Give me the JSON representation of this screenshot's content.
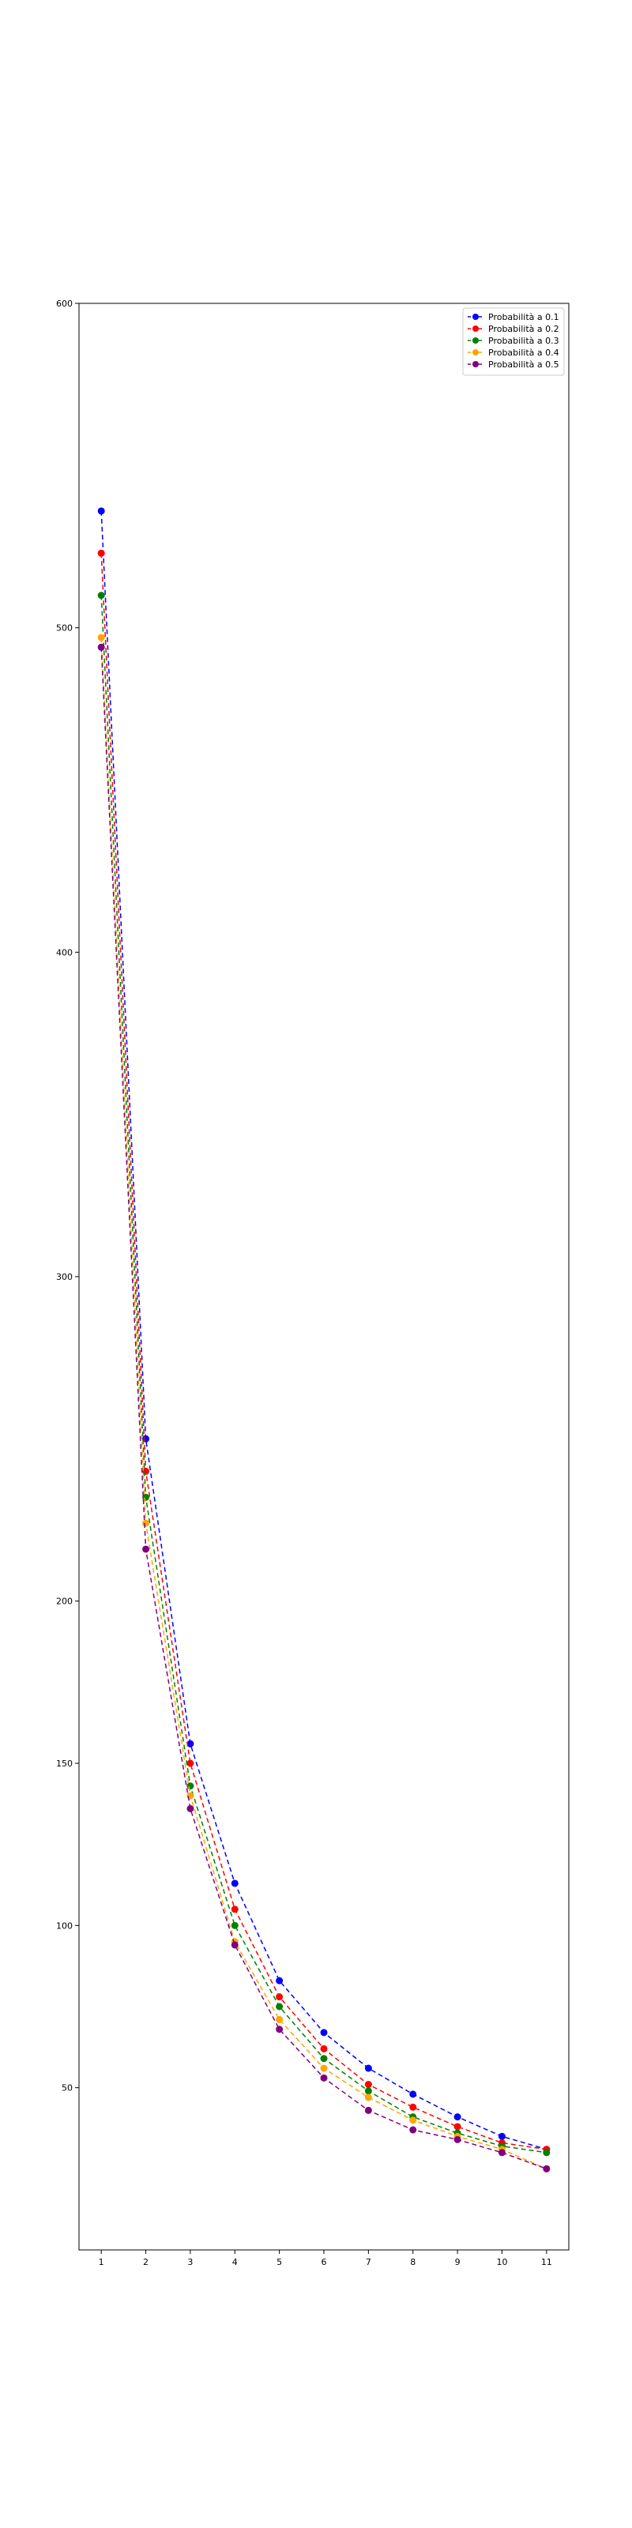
{
  "chart_data": {
    "type": "line",
    "title": "",
    "xlabel": "",
    "ylabel": "",
    "x": [
      1,
      2,
      3,
      4,
      5,
      6,
      7,
      8,
      9,
      10,
      11
    ],
    "xlim": [
      0.5,
      11.5
    ],
    "ylim": [
      0,
      600
    ],
    "y_ticks": [
      50,
      100,
      150,
      200,
      300,
      400,
      500,
      600
    ],
    "grid": false,
    "legend_position": "top-right",
    "series": [
      {
        "name": "Probabilità a 0.1",
        "color": "#0000ff",
        "values": [
          536,
          250,
          156,
          113,
          83,
          67,
          56,
          48,
          41,
          35,
          31
        ]
      },
      {
        "name": "Probabilità a 0.2",
        "color": "#ff0000",
        "values": [
          523,
          240,
          150,
          105,
          78,
          62,
          51,
          44,
          38,
          33,
          31
        ]
      },
      {
        "name": "Probabilità a 0.3",
        "color": "#008000",
        "values": [
          510,
          232,
          143,
          100,
          75,
          59,
          49,
          41,
          36,
          32,
          30
        ]
      },
      {
        "name": "Probabilità a 0.4",
        "color": "#ffa500",
        "values": [
          497,
          224,
          140,
          95,
          71,
          56,
          47,
          40,
          35,
          31,
          25
        ]
      },
      {
        "name": "Probabilità a 0.5",
        "color": "#800080",
        "values": [
          494,
          216,
          136,
          94,
          68,
          53,
          43,
          37,
          34,
          30,
          25
        ]
      }
    ]
  }
}
